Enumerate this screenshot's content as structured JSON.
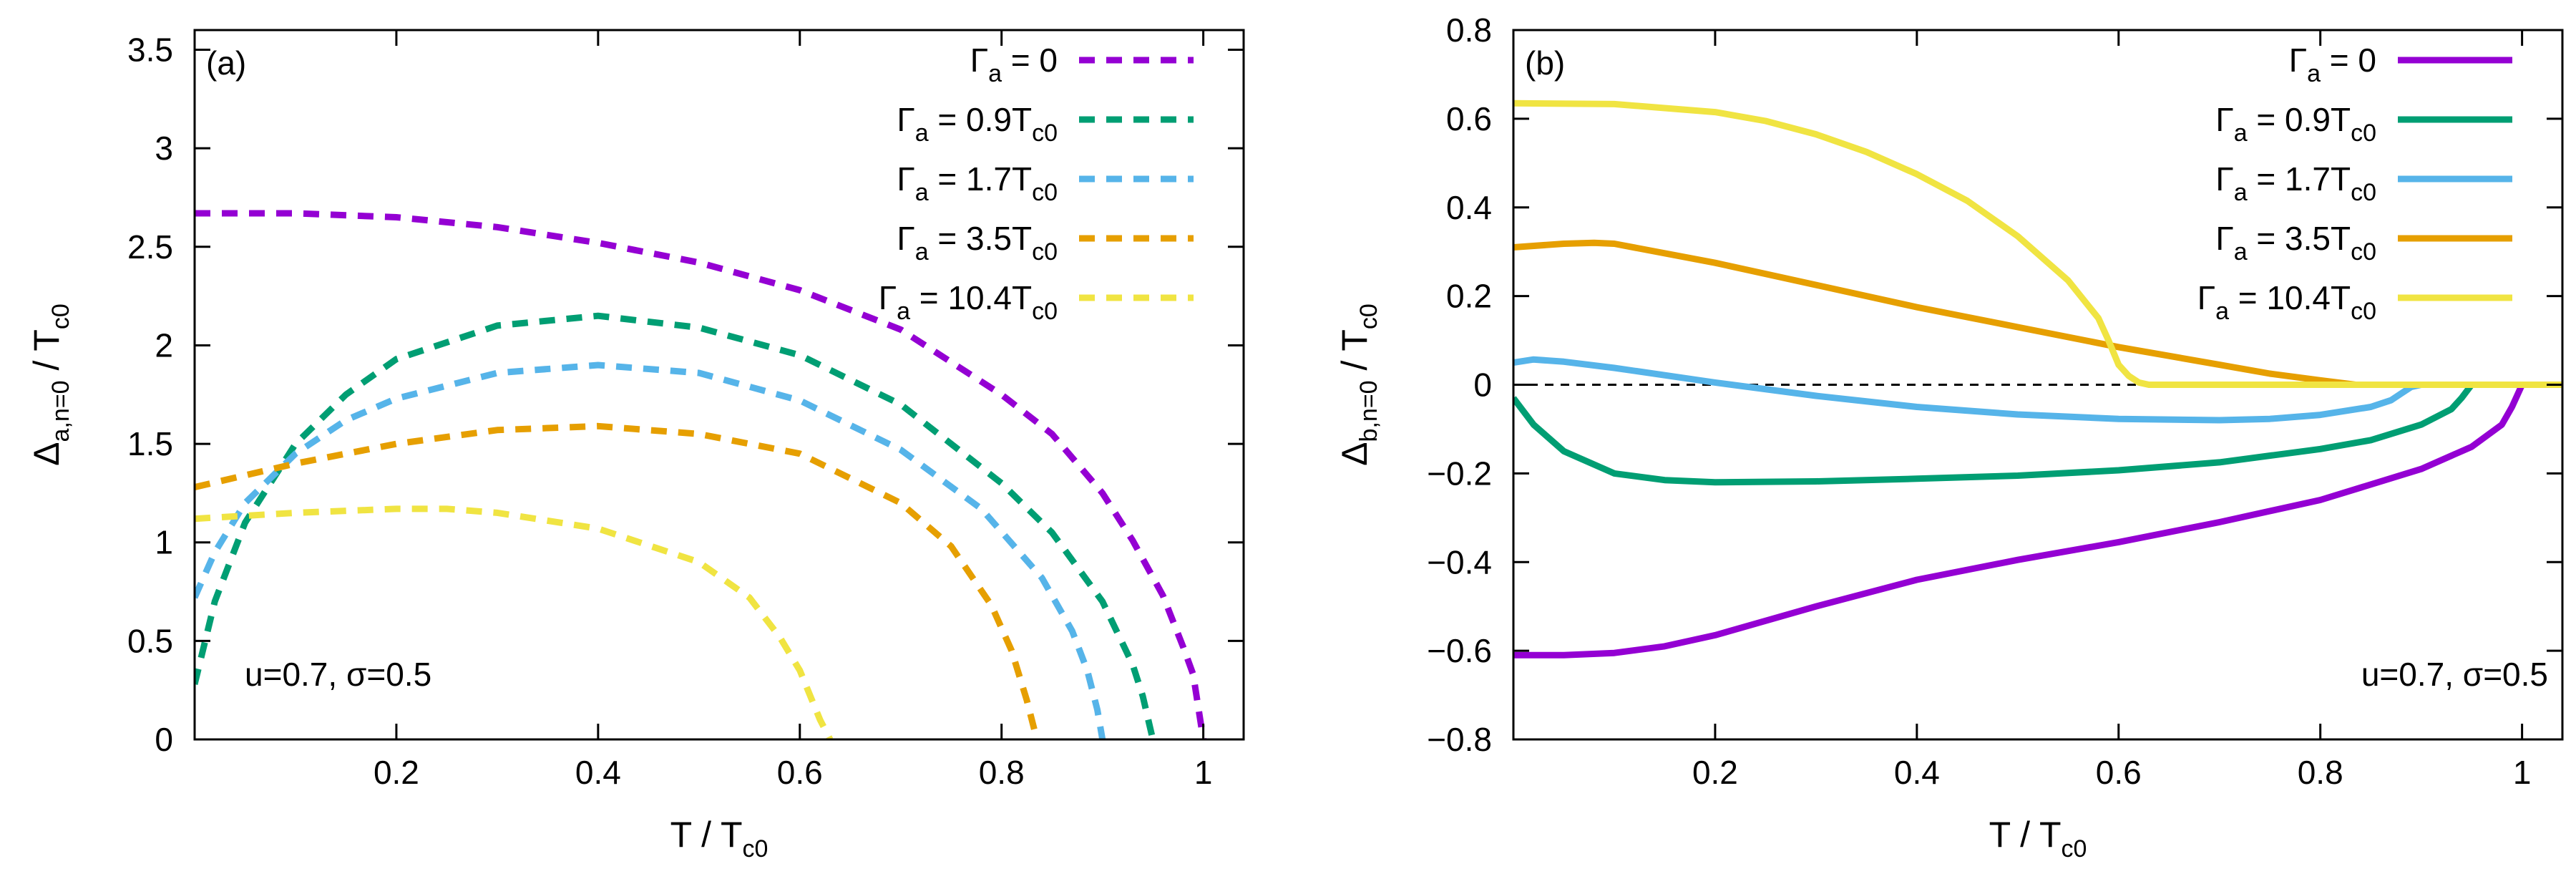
{
  "chart_data": [
    {
      "type": "line",
      "panel": "(a)",
      "xlabel": "T / T_c0",
      "ylabel": "Δ_a,n=0 / T_c0",
      "xlim": [
        0,
        1.04
      ],
      "ylim": [
        0,
        3.6
      ],
      "xticks": [
        0.2,
        0.4,
        0.6,
        0.8,
        1
      ],
      "xtick_labels": [
        "0.2",
        "0.4",
        "0.6",
        "0.8",
        "1"
      ],
      "yticks": [
        0,
        0.5,
        1,
        1.5,
        2,
        2.5,
        3,
        3.5
      ],
      "ytick_labels": [
        "0",
        "0.5",
        "1",
        "1.5",
        "2",
        "2.5",
        "3",
        "3.5"
      ],
      "line_style": "dashed",
      "annotation": "u=0.7, σ=0.5",
      "legend_position": "top-right",
      "zero_line": true,
      "series": [
        {
          "name": "Γa = 0",
          "legend_main": "Γ",
          "legend_sub": "a",
          "legend_value": " = 0",
          "legend_value_sub": "",
          "color": "#9400d3",
          "x": [
            0.0,
            0.1,
            0.2,
            0.3,
            0.4,
            0.5,
            0.6,
            0.7,
            0.8,
            0.85,
            0.9,
            0.93,
            0.96,
            0.98,
            0.99,
            1.0
          ],
          "y": [
            2.67,
            2.67,
            2.65,
            2.6,
            2.52,
            2.42,
            2.28,
            2.08,
            1.75,
            1.55,
            1.25,
            1.01,
            0.73,
            0.47,
            0.33,
            0.0
          ]
        },
        {
          "name": "Γa = 0.9Tc0",
          "legend_main": "Γ",
          "legend_sub": "a",
          "legend_value": " = 0.9T",
          "legend_value_sub": "c0",
          "color": "#009e73",
          "x": [
            0.0,
            0.02,
            0.05,
            0.1,
            0.15,
            0.2,
            0.3,
            0.4,
            0.5,
            0.6,
            0.7,
            0.8,
            0.85,
            0.9,
            0.93,
            0.94,
            0.95
          ],
          "y": [
            0.28,
            0.7,
            1.1,
            1.5,
            1.75,
            1.93,
            2.1,
            2.15,
            2.09,
            1.95,
            1.7,
            1.3,
            1.05,
            0.7,
            0.38,
            0.22,
            0.0
          ]
        },
        {
          "name": "Γa = 1.7Tc0",
          "legend_main": "Γ",
          "legend_sub": "a",
          "legend_value": " = 1.7T",
          "legend_value_sub": "c0",
          "color": "#56b4e9",
          "x": [
            0.0,
            0.02,
            0.05,
            0.1,
            0.15,
            0.2,
            0.3,
            0.4,
            0.5,
            0.6,
            0.7,
            0.78,
            0.84,
            0.87,
            0.885,
            0.895,
            0.9
          ],
          "y": [
            0.72,
            0.95,
            1.2,
            1.45,
            1.62,
            1.73,
            1.86,
            1.9,
            1.86,
            1.72,
            1.47,
            1.17,
            0.82,
            0.55,
            0.35,
            0.15,
            0.0
          ]
        },
        {
          "name": "Γa = 3.5Tc0",
          "legend_main": "Γ",
          "legend_sub": "a",
          "legend_value": " = 3.5T",
          "legend_value_sub": "c0",
          "color": "#e69f00",
          "x": [
            0.0,
            0.1,
            0.2,
            0.3,
            0.4,
            0.5,
            0.6,
            0.7,
            0.75,
            0.79,
            0.81,
            0.825,
            0.835
          ],
          "y": [
            1.28,
            1.4,
            1.5,
            1.57,
            1.59,
            1.55,
            1.45,
            1.2,
            0.98,
            0.68,
            0.45,
            0.2,
            0.0
          ]
        },
        {
          "name": "Γa = 10.4Tc0",
          "legend_main": "Γ",
          "legend_sub": "a",
          "legend_value": " = 10.4T",
          "legend_value_sub": "c0",
          "color": "#f0e442",
          "x": [
            0.0,
            0.1,
            0.2,
            0.25,
            0.3,
            0.4,
            0.5,
            0.55,
            0.58,
            0.6,
            0.62,
            0.63
          ],
          "y": [
            1.12,
            1.15,
            1.17,
            1.17,
            1.15,
            1.07,
            0.9,
            0.72,
            0.52,
            0.35,
            0.1,
            0.0
          ]
        }
      ]
    },
    {
      "type": "line",
      "panel": "(b)",
      "xlabel": "T / T_c0",
      "ylabel": "Δ_b,n=0 / T_c0",
      "xlim": [
        0,
        1.04
      ],
      "ylim": [
        -0.8,
        0.8
      ],
      "xticks": [
        0.2,
        0.4,
        0.6,
        0.8,
        1
      ],
      "xtick_labels": [
        "0.2",
        "0.4",
        "0.6",
        "0.8",
        "1"
      ],
      "yticks": [
        -0.8,
        -0.6,
        -0.4,
        -0.2,
        0,
        0.2,
        0.4,
        0.6,
        0.8
      ],
      "ytick_labels": [
        "−0.8",
        "−0.6",
        "−0.4",
        "−0.2",
        "0",
        "0.2",
        "0.4",
        "0.6",
        "0.8"
      ],
      "line_style": "solid",
      "annotation": "u=0.7, σ=0.5",
      "legend_position": "top-right",
      "zero_line": true,
      "series": [
        {
          "name": "Γa = 0",
          "legend_main": "Γ",
          "legend_sub": "a",
          "legend_value": " = 0",
          "legend_value_sub": "",
          "color": "#9400d3",
          "x": [
            0.0,
            0.05,
            0.1,
            0.15,
            0.2,
            0.3,
            0.4,
            0.5,
            0.6,
            0.7,
            0.8,
            0.9,
            0.95,
            0.98,
            0.99,
            1.0,
            1.04
          ],
          "y": [
            -0.61,
            -0.61,
            -0.605,
            -0.59,
            -0.565,
            -0.5,
            -0.44,
            -0.395,
            -0.355,
            -0.31,
            -0.26,
            -0.19,
            -0.14,
            -0.09,
            -0.05,
            0.0,
            0.0
          ]
        },
        {
          "name": "Γa = 0.9Tc0",
          "legend_main": "Γ",
          "legend_sub": "a",
          "legend_value": " = 0.9T",
          "legend_value_sub": "c0",
          "color": "#009e73",
          "x": [
            0.0,
            0.02,
            0.05,
            0.1,
            0.15,
            0.2,
            0.3,
            0.4,
            0.5,
            0.6,
            0.7,
            0.8,
            0.85,
            0.9,
            0.93,
            0.94,
            0.95,
            1.04
          ],
          "y": [
            -0.03,
            -0.09,
            -0.15,
            -0.2,
            -0.215,
            -0.22,
            -0.218,
            -0.212,
            -0.205,
            -0.193,
            -0.175,
            -0.145,
            -0.125,
            -0.09,
            -0.055,
            -0.03,
            0.0,
            0.0
          ]
        },
        {
          "name": "Γa = 1.7Tc0",
          "legend_main": "Γ",
          "legend_sub": "a",
          "legend_value": " = 1.7T",
          "legend_value_sub": "c0",
          "color": "#56b4e9",
          "x": [
            0.0,
            0.02,
            0.05,
            0.1,
            0.2,
            0.3,
            0.4,
            0.5,
            0.6,
            0.7,
            0.75,
            0.8,
            0.85,
            0.87,
            0.88,
            0.89,
            0.9,
            1.04
          ],
          "y": [
            0.05,
            0.057,
            0.052,
            0.038,
            0.005,
            -0.025,
            -0.05,
            -0.067,
            -0.077,
            -0.08,
            -0.077,
            -0.068,
            -0.05,
            -0.035,
            -0.02,
            -0.005,
            0.0,
            0.0
          ]
        },
        {
          "name": "Γa = 3.5Tc0",
          "legend_main": "Γ",
          "legend_sub": "a",
          "legend_value": " = 3.5T",
          "legend_value_sub": "c0",
          "color": "#e69f00",
          "x": [
            0.0,
            0.05,
            0.08,
            0.1,
            0.2,
            0.3,
            0.4,
            0.5,
            0.6,
            0.7,
            0.75,
            0.8,
            0.835,
            1.04
          ],
          "y": [
            0.31,
            0.318,
            0.32,
            0.318,
            0.275,
            0.225,
            0.175,
            0.13,
            0.085,
            0.045,
            0.025,
            0.01,
            0.0,
            0.0
          ]
        },
        {
          "name": "Γa = 10.4Tc0",
          "legend_main": "Γ",
          "legend_sub": "a",
          "legend_value": " = 10.4T",
          "legend_value_sub": "c0",
          "color": "#f0e442",
          "x": [
            0.0,
            0.1,
            0.2,
            0.25,
            0.3,
            0.35,
            0.4,
            0.45,
            0.5,
            0.55,
            0.58,
            0.59,
            0.6,
            0.61,
            0.62,
            0.63,
            1.04
          ],
          "y": [
            0.635,
            0.633,
            0.615,
            0.595,
            0.565,
            0.525,
            0.475,
            0.415,
            0.335,
            0.235,
            0.15,
            0.1,
            0.045,
            0.02,
            0.005,
            0.0,
            0.0
          ]
        }
      ]
    }
  ]
}
